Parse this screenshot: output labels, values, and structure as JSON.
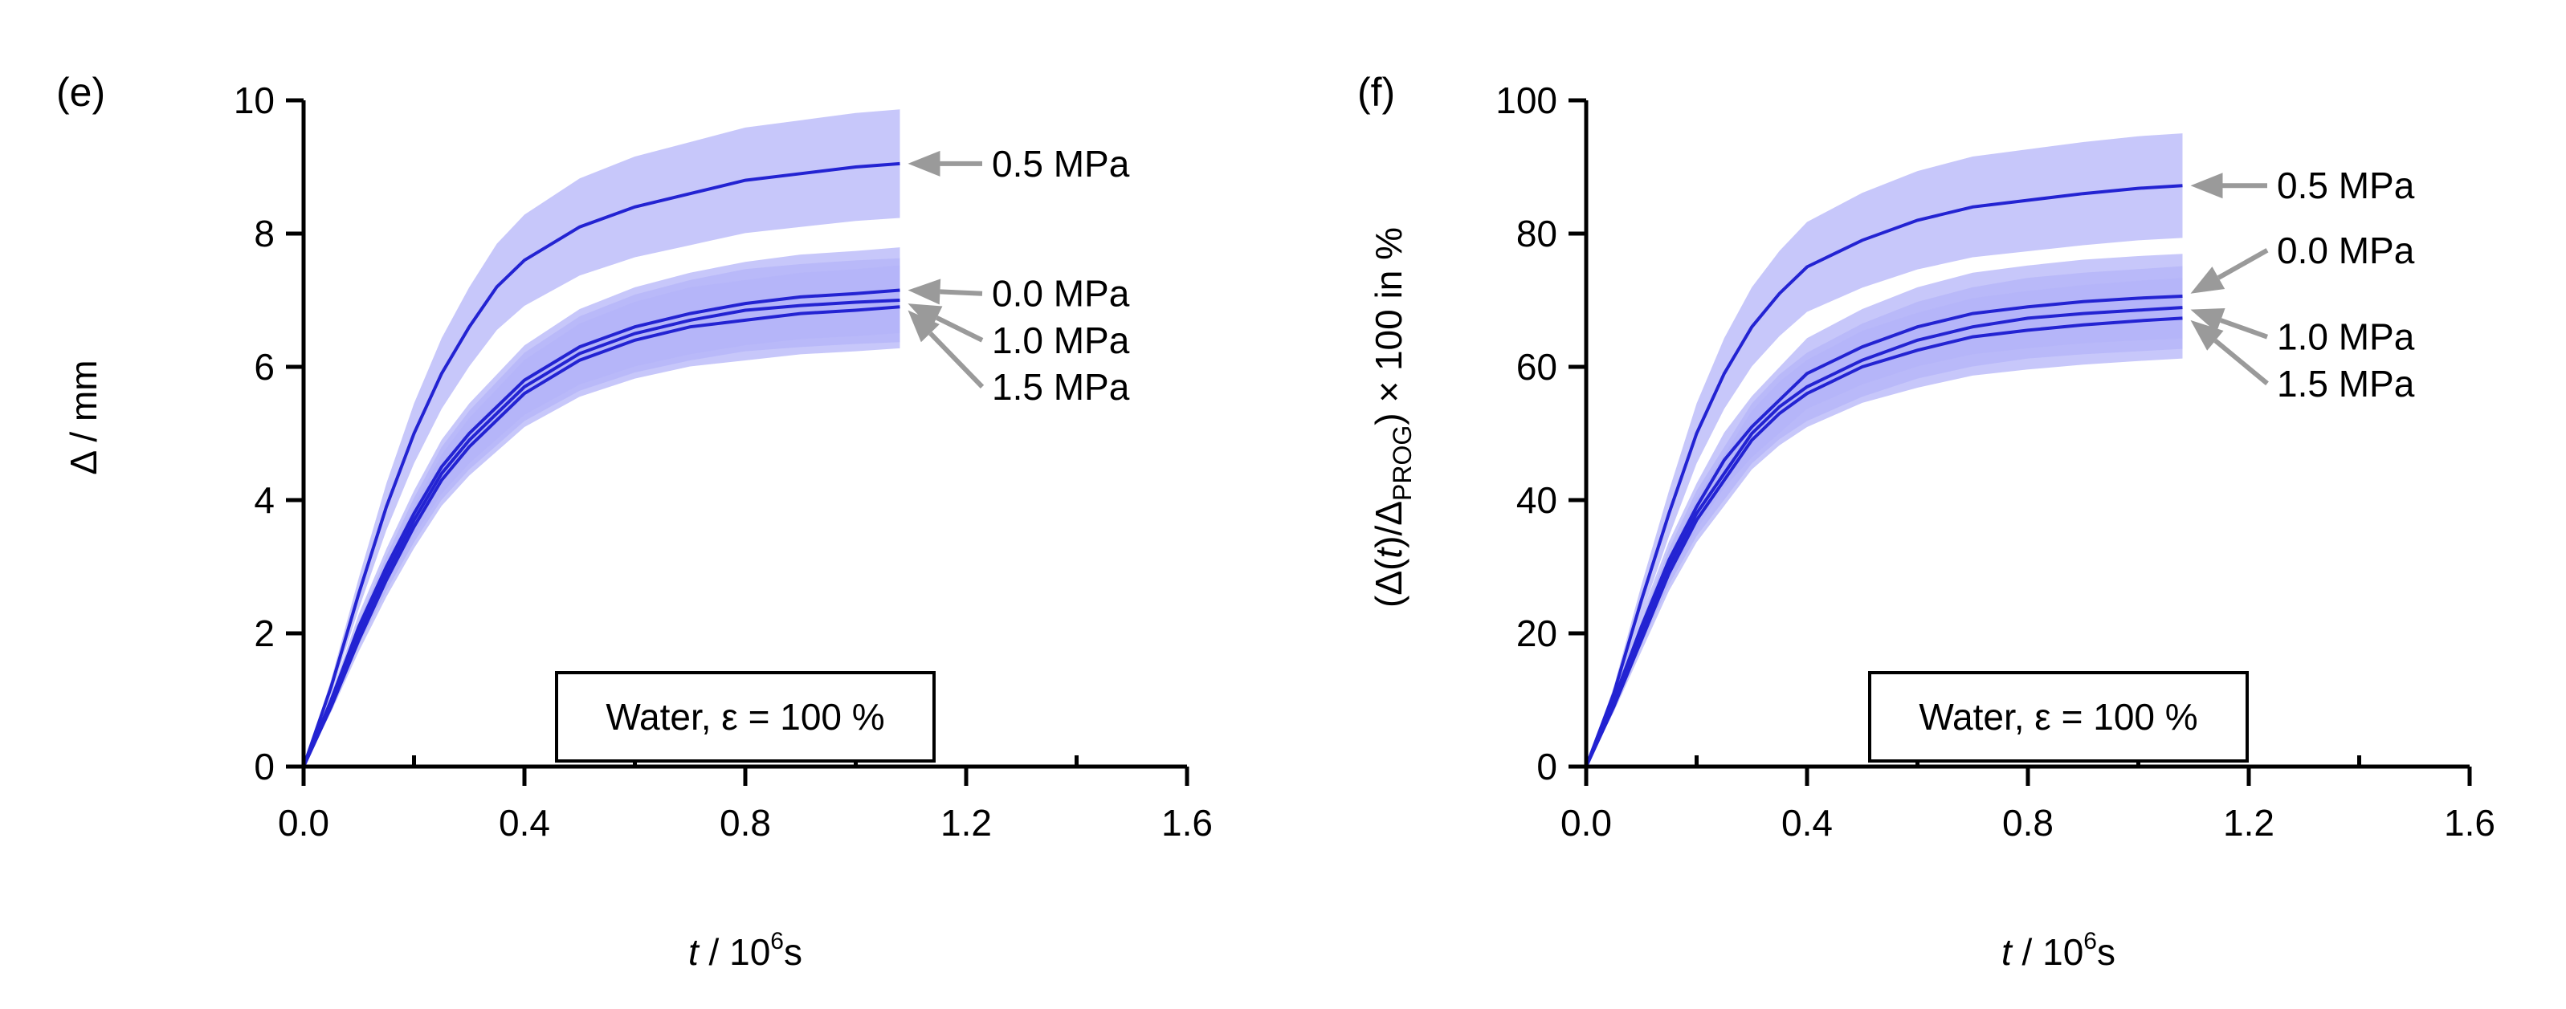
{
  "colors": {
    "line": "#2323d2",
    "band": "#b4b4f8",
    "arrow": "#9a9a9a",
    "text": "#000000"
  },
  "chart_data": [
    {
      "type": "line",
      "panel": "(e)",
      "xlabel_italic": "t",
      "xlabel_rest": " / 10",
      "xlabel_sup": "6",
      "xlabel_unit": "s",
      "ylabel": "Δ / mm",
      "xlim": [
        0.0,
        1.6
      ],
      "ylim": [
        0,
        10
      ],
      "xticks": [
        0.0,
        0.4,
        0.8,
        1.2,
        1.6
      ],
      "xtick_labels": [
        "0.0",
        "0.4",
        "0.8",
        "1.2",
        "1.6"
      ],
      "xticks_minor": [
        0.2,
        0.6,
        1.0,
        1.4
      ],
      "yticks": [
        0,
        2,
        4,
        6,
        8,
        10
      ],
      "ytick_labels": [
        "0",
        "2",
        "4",
        "6",
        "8",
        "10"
      ],
      "annotation": "Water, ε = 100 %",
      "band_halfwidth_relative": 0.09,
      "series": [
        {
          "name": "0.5 MPa",
          "x": [
            0,
            0.05,
            0.1,
            0.15,
            0.2,
            0.25,
            0.3,
            0.35,
            0.4,
            0.5,
            0.6,
            0.7,
            0.8,
            0.9,
            1.0,
            1.08
          ],
          "y": [
            0,
            1.2,
            2.6,
            3.9,
            5.0,
            5.9,
            6.6,
            7.2,
            7.6,
            8.1,
            8.4,
            8.6,
            8.8,
            8.9,
            9.0,
            9.05
          ],
          "label_y": 9.05,
          "arrow_target_y": 9.05
        },
        {
          "name": "0.0 MPa",
          "x": [
            0,
            0.05,
            0.1,
            0.15,
            0.2,
            0.25,
            0.3,
            0.35,
            0.4,
            0.5,
            0.6,
            0.7,
            0.8,
            0.9,
            1.0,
            1.08
          ],
          "y": [
            0,
            1.0,
            2.1,
            3.0,
            3.8,
            4.5,
            5.0,
            5.4,
            5.8,
            6.3,
            6.6,
            6.8,
            6.95,
            7.05,
            7.1,
            7.15
          ],
          "label_y": 7.1,
          "arrow_target_y": 7.15
        },
        {
          "name": "1.0 MPa",
          "x": [
            0,
            0.05,
            0.1,
            0.15,
            0.2,
            0.25,
            0.3,
            0.35,
            0.4,
            0.5,
            0.6,
            0.7,
            0.8,
            0.9,
            1.0,
            1.08
          ],
          "y": [
            0,
            0.95,
            2.0,
            2.9,
            3.7,
            4.4,
            4.9,
            5.3,
            5.7,
            6.2,
            6.5,
            6.7,
            6.85,
            6.92,
            6.97,
            7.0
          ],
          "label_y": 6.4,
          "arrow_target_y": 6.95
        },
        {
          "name": "1.5 MPa",
          "x": [
            0,
            0.05,
            0.1,
            0.15,
            0.2,
            0.25,
            0.3,
            0.35,
            0.4,
            0.5,
            0.6,
            0.7,
            0.8,
            0.9,
            1.0,
            1.08
          ],
          "y": [
            0,
            0.9,
            1.9,
            2.8,
            3.6,
            4.3,
            4.8,
            5.2,
            5.6,
            6.1,
            6.4,
            6.6,
            6.7,
            6.8,
            6.85,
            6.9
          ],
          "label_y": 5.7,
          "arrow_target_y": 6.85
        }
      ]
    },
    {
      "type": "line",
      "panel": "(f)",
      "xlabel_italic": "t",
      "xlabel_rest": " / 10",
      "xlabel_sup": "6",
      "xlabel_unit": "s",
      "ylabel_parts": [
        "(Δ(",
        "t",
        ")/Δ",
        "PROG",
        ") × 100 in %"
      ],
      "xlim": [
        0.0,
        1.6
      ],
      "ylim": [
        0,
        100
      ],
      "xticks": [
        0.0,
        0.4,
        0.8,
        1.2,
        1.6
      ],
      "xtick_labels": [
        "0.0",
        "0.4",
        "0.8",
        "1.2",
        "1.6"
      ],
      "xticks_minor": [
        0.2,
        0.6,
        1.0,
        1.4
      ],
      "yticks": [
        0,
        20,
        40,
        60,
        80,
        100
      ],
      "ytick_labels": [
        "0",
        "20",
        "40",
        "60",
        "80",
        "100"
      ],
      "annotation": "Water, ε = 100 %",
      "band_halfwidth_relative": 0.09,
      "series": [
        {
          "name": "0.5 MPa",
          "x": [
            0,
            0.05,
            0.1,
            0.15,
            0.2,
            0.25,
            0.3,
            0.35,
            0.4,
            0.5,
            0.6,
            0.7,
            0.8,
            0.9,
            1.0,
            1.08
          ],
          "y": [
            0,
            11,
            25,
            38,
            50,
            59,
            66,
            71,
            75,
            79,
            82,
            84,
            85,
            86,
            86.8,
            87.2
          ],
          "label_y": 87.2,
          "arrow_target_y": 87.2
        },
        {
          "name": "0.0 MPa",
          "x": [
            0,
            0.05,
            0.1,
            0.15,
            0.2,
            0.25,
            0.3,
            0.35,
            0.4,
            0.5,
            0.6,
            0.7,
            0.8,
            0.9,
            1.0,
            1.08
          ],
          "y": [
            0,
            10,
            21,
            31,
            39,
            46,
            51,
            55,
            59,
            63,
            66,
            68,
            69,
            69.8,
            70.3,
            70.6
          ],
          "label_y": 77.5,
          "arrow_target_y": 71.0
        },
        {
          "name": "1.0 MPa",
          "x": [
            0,
            0.05,
            0.1,
            0.15,
            0.2,
            0.25,
            0.3,
            0.35,
            0.4,
            0.5,
            0.6,
            0.7,
            0.8,
            0.9,
            1.0,
            1.08
          ],
          "y": [
            0,
            9.5,
            20,
            30,
            38,
            44,
            50,
            54,
            57,
            61,
            64,
            66,
            67.3,
            68,
            68.5,
            68.9
          ],
          "label_y": 64.5,
          "arrow_target_y": 68.6
        },
        {
          "name": "1.5 MPa",
          "x": [
            0,
            0.05,
            0.1,
            0.15,
            0.2,
            0.25,
            0.3,
            0.35,
            0.4,
            0.5,
            0.6,
            0.7,
            0.8,
            0.9,
            1.0,
            1.08
          ],
          "y": [
            0,
            9,
            19,
            29,
            37,
            43,
            49,
            53,
            56,
            60,
            62.5,
            64.5,
            65.5,
            66.3,
            66.9,
            67.3
          ],
          "label_y": 57.5,
          "arrow_target_y": 67.0
        }
      ]
    }
  ]
}
